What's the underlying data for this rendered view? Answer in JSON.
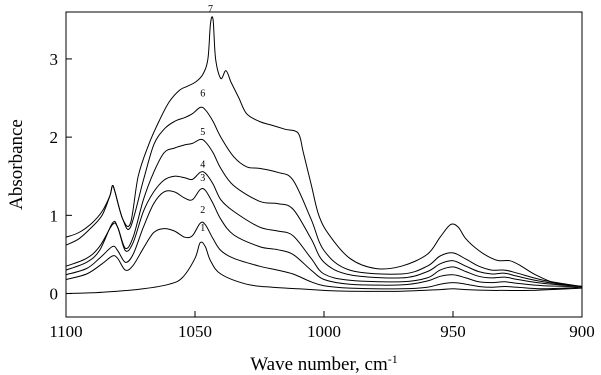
{
  "chart_data": {
    "type": "line",
    "title": "",
    "xlabel": "Wave number, cm",
    "xlabel_sup": "-1",
    "ylabel": "Absorbance",
    "xlim": [
      1100,
      900
    ],
    "ylim": [
      -0.3,
      3.6
    ],
    "x_reversed": true,
    "x_ticks": [
      1100,
      1050,
      1000,
      950,
      900
    ],
    "y_ticks": [
      0,
      1,
      2,
      3
    ],
    "grid": false,
    "legend": "none",
    "series": [
      {
        "label": "1",
        "label_x": 1047,
        "label_y": 0.8,
        "points": [
          [
            1100,
            0.0
          ],
          [
            1090,
            0.01
          ],
          [
            1080,
            0.03
          ],
          [
            1070,
            0.06
          ],
          [
            1060,
            0.12
          ],
          [
            1055,
            0.2
          ],
          [
            1050,
            0.45
          ],
          [
            1048,
            0.65
          ],
          [
            1046,
            0.6
          ],
          [
            1044,
            0.42
          ],
          [
            1040,
            0.25
          ],
          [
            1030,
            0.12
          ],
          [
            1020,
            0.08
          ],
          [
            1010,
            0.06
          ],
          [
            1000,
            0.04
          ],
          [
            990,
            0.03
          ],
          [
            970,
            0.03
          ],
          [
            955,
            0.05
          ],
          [
            950,
            0.06
          ],
          [
            945,
            0.05
          ],
          [
            935,
            0.04
          ],
          [
            930,
            0.04
          ],
          [
            920,
            0.04
          ],
          [
            900,
            0.07
          ]
        ]
      },
      {
        "label": "2",
        "label_x": 1047,
        "label_y": 1.03,
        "points": [
          [
            1100,
            0.18
          ],
          [
            1092,
            0.25
          ],
          [
            1086,
            0.38
          ],
          [
            1082,
            0.48
          ],
          [
            1080,
            0.45
          ],
          [
            1077,
            0.3
          ],
          [
            1074,
            0.36
          ],
          [
            1070,
            0.58
          ],
          [
            1066,
            0.78
          ],
          [
            1062,
            0.83
          ],
          [
            1058,
            0.8
          ],
          [
            1054,
            0.72
          ],
          [
            1051,
            0.74
          ],
          [
            1048,
            0.9
          ],
          [
            1046,
            0.88
          ],
          [
            1043,
            0.7
          ],
          [
            1040,
            0.55
          ],
          [
            1035,
            0.45
          ],
          [
            1025,
            0.35
          ],
          [
            1018,
            0.3
          ],
          [
            1012,
            0.25
          ],
          [
            1005,
            0.15
          ],
          [
            1000,
            0.1
          ],
          [
            990,
            0.07
          ],
          [
            970,
            0.06
          ],
          [
            960,
            0.08
          ],
          [
            955,
            0.12
          ],
          [
            950,
            0.14
          ],
          [
            945,
            0.12
          ],
          [
            940,
            0.09
          ],
          [
            935,
            0.08
          ],
          [
            930,
            0.09
          ],
          [
            925,
            0.08
          ],
          [
            915,
            0.06
          ],
          [
            900,
            0.08
          ]
        ]
      },
      {
        "label": "3",
        "label_x": 1047,
        "label_y": 1.44,
        "points": [
          [
            1100,
            0.24
          ],
          [
            1092,
            0.32
          ],
          [
            1087,
            0.45
          ],
          [
            1082,
            0.6
          ],
          [
            1080,
            0.55
          ],
          [
            1077,
            0.4
          ],
          [
            1074,
            0.5
          ],
          [
            1070,
            0.85
          ],
          [
            1066,
            1.15
          ],
          [
            1062,
            1.3
          ],
          [
            1058,
            1.3
          ],
          [
            1054,
            1.22
          ],
          [
            1051,
            1.2
          ],
          [
            1048,
            1.33
          ],
          [
            1046,
            1.32
          ],
          [
            1043,
            1.15
          ],
          [
            1040,
            0.95
          ],
          [
            1035,
            0.75
          ],
          [
            1025,
            0.6
          ],
          [
            1018,
            0.56
          ],
          [
            1012,
            0.5
          ],
          [
            1005,
            0.3
          ],
          [
            1000,
            0.18
          ],
          [
            990,
            0.12
          ],
          [
            970,
            0.11
          ],
          [
            960,
            0.16
          ],
          [
            955,
            0.22
          ],
          [
            950,
            0.24
          ],
          [
            945,
            0.2
          ],
          [
            940,
            0.15
          ],
          [
            935,
            0.14
          ],
          [
            930,
            0.15
          ],
          [
            925,
            0.13
          ],
          [
            915,
            0.1
          ],
          [
            900,
            0.09
          ]
        ]
      },
      {
        "label": "4",
        "label_x": 1047,
        "label_y": 1.61,
        "points": [
          [
            1100,
            0.3
          ],
          [
            1092,
            0.4
          ],
          [
            1087,
            0.55
          ],
          [
            1082,
            0.9
          ],
          [
            1080,
            0.85
          ],
          [
            1077,
            0.55
          ],
          [
            1074,
            0.65
          ],
          [
            1070,
            1.05
          ],
          [
            1066,
            1.3
          ],
          [
            1062,
            1.45
          ],
          [
            1058,
            1.5
          ],
          [
            1054,
            1.48
          ],
          [
            1051,
            1.46
          ],
          [
            1048,
            1.55
          ],
          [
            1046,
            1.54
          ],
          [
            1043,
            1.4
          ],
          [
            1040,
            1.2
          ],
          [
            1035,
            1.05
          ],
          [
            1025,
            0.85
          ],
          [
            1018,
            0.8
          ],
          [
            1012,
            0.74
          ],
          [
            1005,
            0.45
          ],
          [
            1000,
            0.25
          ],
          [
            990,
            0.17
          ],
          [
            970,
            0.15
          ],
          [
            960,
            0.2
          ],
          [
            955,
            0.3
          ],
          [
            950,
            0.34
          ],
          [
            945,
            0.28
          ],
          [
            940,
            0.22
          ],
          [
            935,
            0.2
          ],
          [
            930,
            0.21
          ],
          [
            925,
            0.18
          ],
          [
            915,
            0.13
          ],
          [
            900,
            0.09
          ]
        ]
      },
      {
        "label": "5",
        "label_x": 1047,
        "label_y": 2.03,
        "points": [
          [
            1100,
            0.35
          ],
          [
            1092,
            0.45
          ],
          [
            1087,
            0.6
          ],
          [
            1082,
            0.88
          ],
          [
            1080,
            0.85
          ],
          [
            1077,
            0.58
          ],
          [
            1074,
            0.72
          ],
          [
            1070,
            1.2
          ],
          [
            1066,
            1.55
          ],
          [
            1062,
            1.8
          ],
          [
            1058,
            1.86
          ],
          [
            1054,
            1.9
          ],
          [
            1051,
            1.92
          ],
          [
            1048,
            1.97
          ],
          [
            1046,
            1.94
          ],
          [
            1043,
            1.8
          ],
          [
            1040,
            1.6
          ],
          [
            1035,
            1.38
          ],
          [
            1025,
            1.18
          ],
          [
            1018,
            1.15
          ],
          [
            1012,
            1.08
          ],
          [
            1005,
            0.7
          ],
          [
            1000,
            0.4
          ],
          [
            990,
            0.24
          ],
          [
            970,
            0.2
          ],
          [
            960,
            0.28
          ],
          [
            955,
            0.38
          ],
          [
            950,
            0.42
          ],
          [
            945,
            0.35
          ],
          [
            940,
            0.28
          ],
          [
            935,
            0.25
          ],
          [
            930,
            0.26
          ],
          [
            925,
            0.22
          ],
          [
            915,
            0.15
          ],
          [
            900,
            0.09
          ]
        ]
      },
      {
        "label": "6",
        "label_x": 1047,
        "label_y": 2.52,
        "points": [
          [
            1100,
            0.62
          ],
          [
            1095,
            0.7
          ],
          [
            1090,
            0.85
          ],
          [
            1086,
            1.0
          ],
          [
            1083,
            1.25
          ],
          [
            1082,
            1.38
          ],
          [
            1081,
            1.3
          ],
          [
            1078,
            0.95
          ],
          [
            1075,
            0.85
          ],
          [
            1070,
            1.45
          ],
          [
            1066,
            1.9
          ],
          [
            1062,
            2.1
          ],
          [
            1058,
            2.2
          ],
          [
            1054,
            2.25
          ],
          [
            1051,
            2.3
          ],
          [
            1048,
            2.38
          ],
          [
            1046,
            2.35
          ],
          [
            1043,
            2.2
          ],
          [
            1040,
            2.0
          ],
          [
            1035,
            1.75
          ],
          [
            1030,
            1.62
          ],
          [
            1025,
            1.6
          ],
          [
            1018,
            1.55
          ],
          [
            1012,
            1.45
          ],
          [
            1005,
            0.95
          ],
          [
            1000,
            0.55
          ],
          [
            990,
            0.3
          ],
          [
            970,
            0.25
          ],
          [
            960,
            0.35
          ],
          [
            955,
            0.48
          ],
          [
            950,
            0.52
          ],
          [
            945,
            0.44
          ],
          [
            940,
            0.35
          ],
          [
            935,
            0.3
          ],
          [
            930,
            0.3
          ],
          [
            925,
            0.26
          ],
          [
            915,
            0.17
          ],
          [
            900,
            0.09
          ]
        ]
      },
      {
        "label": "7",
        "label_x": 1044,
        "label_y": 3.6,
        "points": [
          [
            1100,
            0.72
          ],
          [
            1095,
            0.78
          ],
          [
            1090,
            0.9
          ],
          [
            1086,
            1.05
          ],
          [
            1083,
            1.25
          ],
          [
            1082,
            1.38
          ],
          [
            1081,
            1.3
          ],
          [
            1078,
            0.95
          ],
          [
            1075,
            0.9
          ],
          [
            1072,
            1.5
          ],
          [
            1068,
            1.9
          ],
          [
            1064,
            2.2
          ],
          [
            1060,
            2.45
          ],
          [
            1056,
            2.6
          ],
          [
            1053,
            2.65
          ],
          [
            1050,
            2.7
          ],
          [
            1047,
            2.8
          ],
          [
            1045,
            3.0
          ],
          [
            1044,
            3.45
          ],
          [
            1043,
            3.5
          ],
          [
            1042,
            3.0
          ],
          [
            1040,
            2.75
          ],
          [
            1038,
            2.85
          ],
          [
            1036,
            2.7
          ],
          [
            1033,
            2.5
          ],
          [
            1030,
            2.3
          ],
          [
            1025,
            2.2
          ],
          [
            1020,
            2.15
          ],
          [
            1015,
            2.1
          ],
          [
            1010,
            2.05
          ],
          [
            1008,
            1.8
          ],
          [
            1005,
            1.4
          ],
          [
            1002,
            1.0
          ],
          [
            998,
            0.75
          ],
          [
            990,
            0.45
          ],
          [
            980,
            0.32
          ],
          [
            970,
            0.35
          ],
          [
            960,
            0.5
          ],
          [
            955,
            0.72
          ],
          [
            951,
            0.88
          ],
          [
            948,
            0.85
          ],
          [
            945,
            0.7
          ],
          [
            940,
            0.55
          ],
          [
            935,
            0.45
          ],
          [
            932,
            0.42
          ],
          [
            928,
            0.42
          ],
          [
            924,
            0.36
          ],
          [
            918,
            0.24
          ],
          [
            910,
            0.13
          ],
          [
            900,
            0.09
          ]
        ]
      }
    ]
  }
}
